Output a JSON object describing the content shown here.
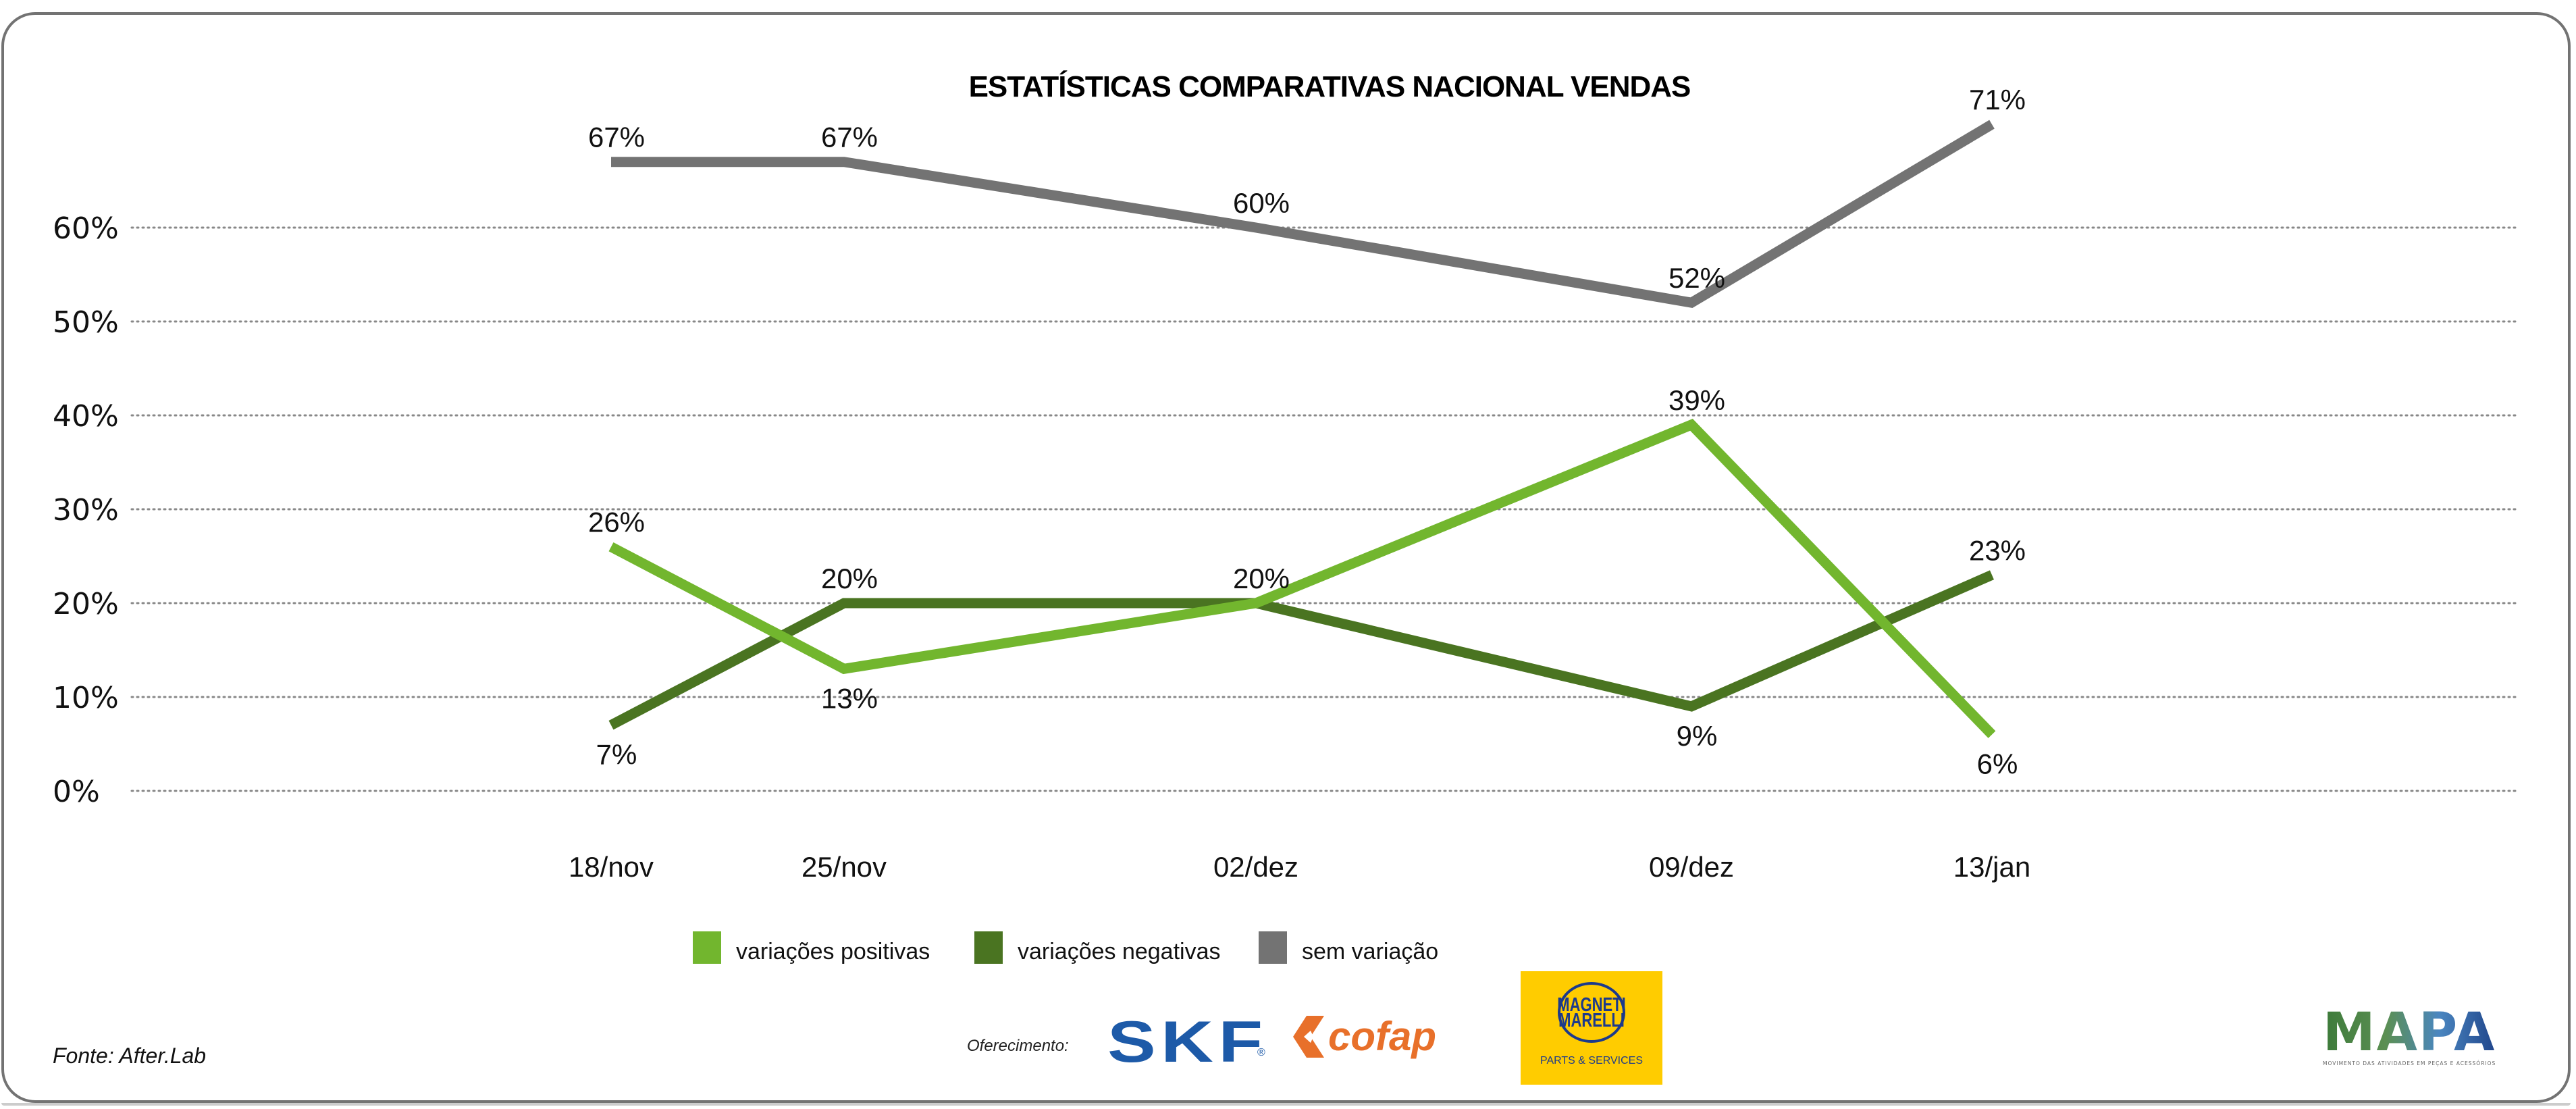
{
  "colors": {
    "positive": "#72b62e",
    "negative": "#4a7421",
    "neutral": "#737373",
    "grid": "#888888",
    "frame": "#737373"
  },
  "chart_data": {
    "type": "line",
    "title": "ESTATÍSTICAS COMPARATIVAS NACIONAL VENDAS",
    "xlabel": "",
    "ylabel": "",
    "categories": [
      "18/nov",
      "25/nov",
      "02/dez",
      "09/dez",
      "13/jan"
    ],
    "yticks": [
      "0%",
      "10%",
      "20%",
      "30%",
      "40%",
      "50%",
      "60%"
    ],
    "ylim": [
      0,
      60
    ],
    "grid": true,
    "grid_style": "dotted horizontal",
    "legend_position": "bottom-center",
    "series": [
      {
        "name": "variações positivas",
        "color_key": "positive",
        "values": [
          26,
          13,
          20,
          39,
          6
        ],
        "labels": [
          "26%",
          "13%",
          "20%",
          "39%",
          "6%"
        ],
        "label_pos": [
          "above",
          "below",
          "above",
          "above",
          "below"
        ]
      },
      {
        "name": "variações negativas",
        "color_key": "negative",
        "values": [
          7,
          20,
          20,
          9,
          23
        ],
        "labels": [
          "7%",
          "20%",
          "",
          "9%",
          "23%"
        ],
        "label_pos": [
          "below",
          "above",
          "none",
          "below",
          "above"
        ]
      },
      {
        "name": "sem variação",
        "color_key": "neutral",
        "values": [
          67,
          67,
          60,
          52,
          71
        ],
        "labels": [
          "67%",
          "67%",
          "60%",
          "52%",
          "71%"
        ],
        "label_pos": [
          "above",
          "above",
          "above",
          "above",
          "above"
        ]
      }
    ]
  },
  "footer": {
    "source": "Fonte: After.Lab",
    "sponsor_label": "Oferecimento:",
    "sponsors": {
      "skf": "SKF",
      "skf_reg": "®",
      "cofap": "cofap",
      "magneti_line1": "MAGNETI",
      "magneti_line2": "MARELLI",
      "magneti_sub": "PARTS & SERVICES"
    },
    "brand": {
      "name": "MAPA",
      "tagline": "MOVIMENTO DAS ATIVIDADES EM PEÇAS E ACESSÓRIOS"
    }
  }
}
